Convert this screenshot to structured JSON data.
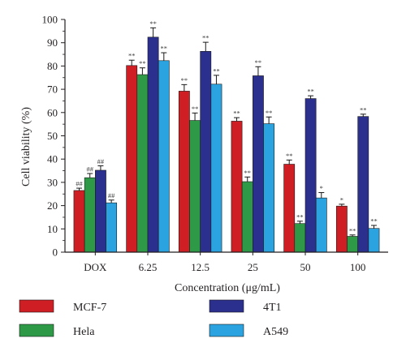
{
  "chart_data": {
    "type": "bar",
    "xlabel": "Concentration (μg/mL)",
    "ylabel": "Cell viability (%)",
    "ylim": [
      0,
      100
    ],
    "yticks": [
      0,
      10,
      20,
      30,
      40,
      50,
      60,
      70,
      80,
      90,
      100
    ],
    "categories": [
      "DOX",
      "6.25",
      "12.5",
      "25",
      "50",
      "100"
    ],
    "series": [
      {
        "name": "MCF-7",
        "color": "#cf1f25",
        "values": [
          26.5,
          80.2,
          69.2,
          56.3,
          37.8,
          19.8
        ],
        "errors": [
          1.0,
          2.3,
          2.8,
          1.5,
          1.8,
          0.8
        ],
        "labels": [
          "##",
          "**",
          "**",
          "**",
          "**",
          "*"
        ]
      },
      {
        "name": "Hela",
        "color": "#2e9a47",
        "values": [
          32.0,
          76.3,
          56.6,
          30.3,
          12.3,
          6.8
        ],
        "errors": [
          1.8,
          2.9,
          3.2,
          2.0,
          1.0,
          0.6
        ],
        "labels": [
          "##",
          "**",
          "**",
          "**",
          "**",
          "**"
        ]
      },
      {
        "name": "4T1",
        "color": "#2b2f8e",
        "values": [
          35.2,
          92.4,
          86.3,
          75.8,
          66.0,
          58.3
        ],
        "errors": [
          1.9,
          4.0,
          3.9,
          3.9,
          1.2,
          1.0
        ],
        "labels": [
          "##",
          "**",
          "**",
          "**",
          "**",
          "**"
        ]
      },
      {
        "name": "A549",
        "color": "#2ba3e0",
        "values": [
          21.2,
          82.3,
          72.2,
          55.2,
          23.3,
          10.2
        ],
        "errors": [
          1.2,
          3.4,
          3.8,
          2.9,
          2.3,
          1.3
        ],
        "labels": [
          "##",
          "**",
          "**",
          "**",
          "*",
          "**"
        ]
      }
    ],
    "legend": {
      "placement": "bottom",
      "layout": "two-columns"
    }
  }
}
